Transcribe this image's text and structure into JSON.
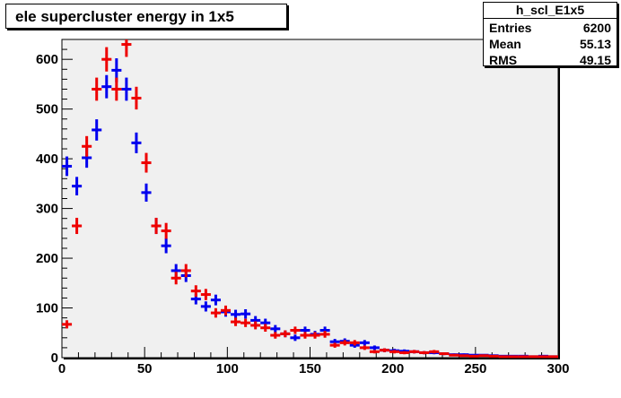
{
  "title": "ele supercluster energy in 1x5",
  "stats": {
    "name": "h_scl_E1x5",
    "rows": [
      {
        "key": "Entries",
        "value": "6200"
      },
      {
        "key": "Mean",
        "value": "55.13"
      },
      {
        "key": "RMS",
        "value": "49.15"
      }
    ]
  },
  "colors": {
    "frame_bg": "#f0f0f0",
    "series_blue": "#0000ee",
    "series_red": "#ee0000"
  },
  "chart_data": {
    "type": "scatter",
    "title": "ele supercluster energy in 1x5",
    "xlabel": "",
    "ylabel": "",
    "xlim": [
      0,
      300
    ],
    "ylim": [
      0,
      640
    ],
    "x_ticks": [
      "0",
      "50",
      "100",
      "150",
      "200",
      "250",
      "300"
    ],
    "y_ticks": [
      "0",
      "100",
      "200",
      "300",
      "400",
      "500",
      "600"
    ],
    "bin_width": 6,
    "grid": false,
    "series": [
      {
        "color": "#0000ee",
        "x": [
          3,
          9,
          15,
          21,
          27,
          33,
          39,
          45,
          51,
          57,
          63,
          69,
          75,
          81,
          87,
          93,
          99,
          105,
          111,
          117,
          123,
          129,
          135,
          141,
          147,
          153,
          159,
          165,
          171,
          177,
          183,
          189,
          195,
          201,
          207,
          213,
          219,
          225,
          231,
          237,
          243,
          249,
          255,
          261,
          267,
          273,
          279,
          285,
          291,
          297
        ],
        "values": [
          385,
          345,
          402,
          458,
          545,
          578,
          540,
          432,
          332,
          265,
          225,
          175,
          165,
          118,
          103,
          116,
          92,
          87,
          88,
          75,
          70,
          58,
          48,
          40,
          55,
          47,
          55,
          32,
          33,
          25,
          30,
          20,
          15,
          14,
          13,
          12,
          10,
          10,
          8,
          6,
          6,
          5,
          5,
          4,
          3,
          3,
          3,
          2,
          3,
          2
        ]
      },
      {
        "color": "#ee0000",
        "x": [
          3,
          9,
          15,
          21,
          27,
          33,
          39,
          45,
          51,
          57,
          63,
          69,
          75,
          81,
          87,
          93,
          99,
          105,
          111,
          117,
          123,
          129,
          135,
          141,
          147,
          153,
          159,
          165,
          171,
          177,
          183,
          189,
          195,
          201,
          207,
          213,
          219,
          225,
          231,
          237,
          243,
          249,
          255,
          261,
          267,
          273,
          279,
          285,
          291,
          297
        ],
        "values": [
          67,
          265,
          425,
          540,
          600,
          540,
          630,
          522,
          392,
          265,
          255,
          160,
          175,
          134,
          127,
          90,
          95,
          72,
          70,
          65,
          60,
          45,
          48,
          55,
          45,
          45,
          47,
          25,
          30,
          30,
          20,
          12,
          15,
          12,
          10,
          12,
          10,
          12,
          8,
          5,
          4,
          3,
          4,
          3,
          2,
          2,
          2,
          2,
          2,
          2
        ]
      }
    ]
  }
}
